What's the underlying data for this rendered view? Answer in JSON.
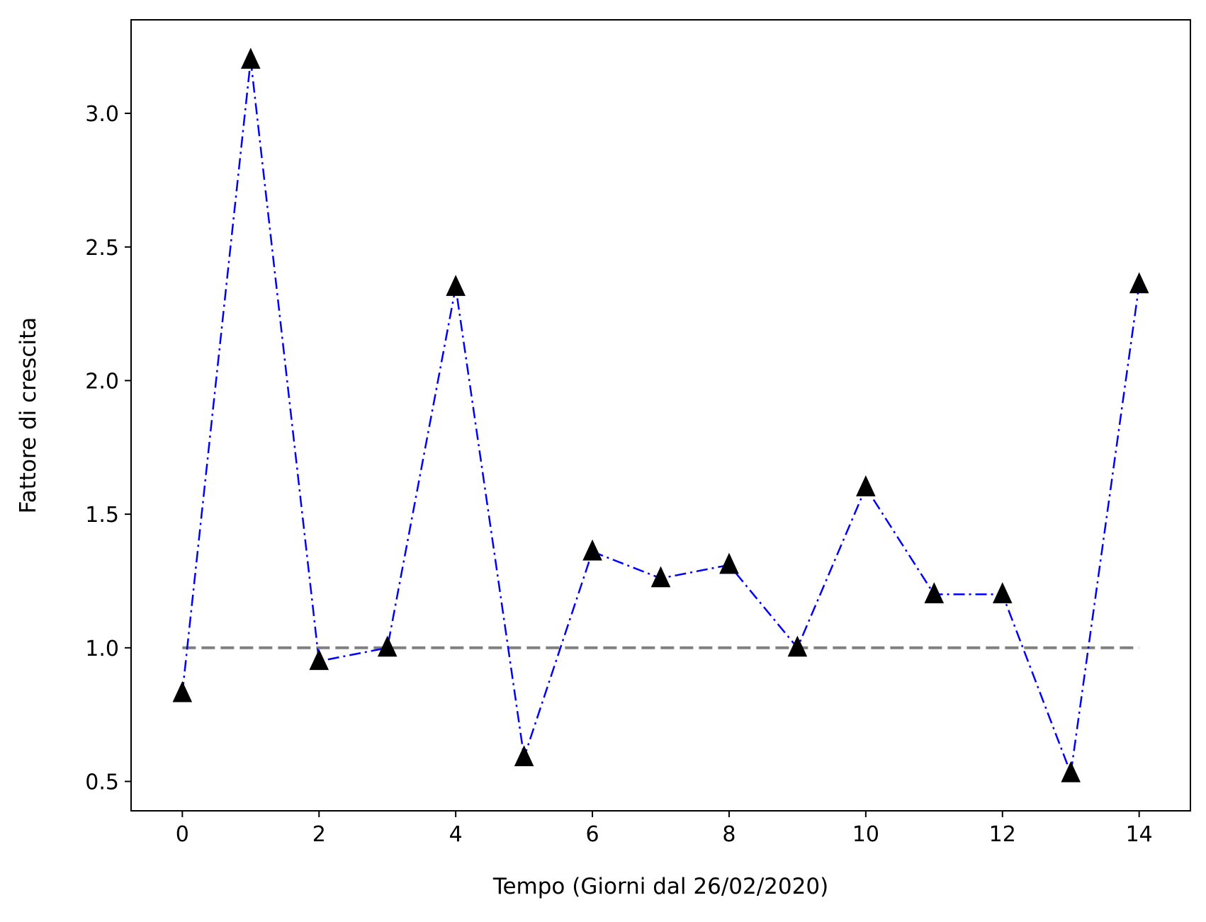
{
  "chart_data": {
    "type": "line",
    "title": "",
    "xlabel": "Tempo (Giorni dal 26/02/2020)",
    "ylabel": "Fattore di crescita",
    "xlim": [
      -0.75,
      14.75
    ],
    "ylim": [
      0.39,
      3.35
    ],
    "x_ticks": [
      0,
      2,
      4,
      6,
      8,
      10,
      12,
      14
    ],
    "x_tick_labels": [
      "0",
      "2",
      "4",
      "6",
      "8",
      "10",
      "12",
      "14"
    ],
    "y_ticks": [
      0.5,
      1.0,
      1.5,
      2.0,
      2.5,
      3.0
    ],
    "y_tick_labels": [
      "0.5",
      "1.0",
      "1.5",
      "2.0",
      "2.5",
      "3.0"
    ],
    "grid": false,
    "series": [
      {
        "x": [
          0,
          1,
          2,
          3,
          4,
          5,
          6,
          7,
          8,
          9,
          10,
          11,
          12,
          13,
          14
        ],
        "y": [
          0.83,
          3.2,
          0.95,
          1.0,
          2.35,
          0.59,
          1.36,
          1.26,
          1.31,
          1.0,
          1.6,
          1.2,
          1.2,
          0.53,
          2.36
        ],
        "line_color": "#0000ff",
        "line_style": "dashdot",
        "marker": "triangle-up",
        "marker_color": "#000000"
      }
    ],
    "reference_lines": [
      {
        "y": 1.0,
        "x_range": [
          0,
          14
        ],
        "color": "#808080",
        "line_style": "dashed"
      }
    ]
  }
}
